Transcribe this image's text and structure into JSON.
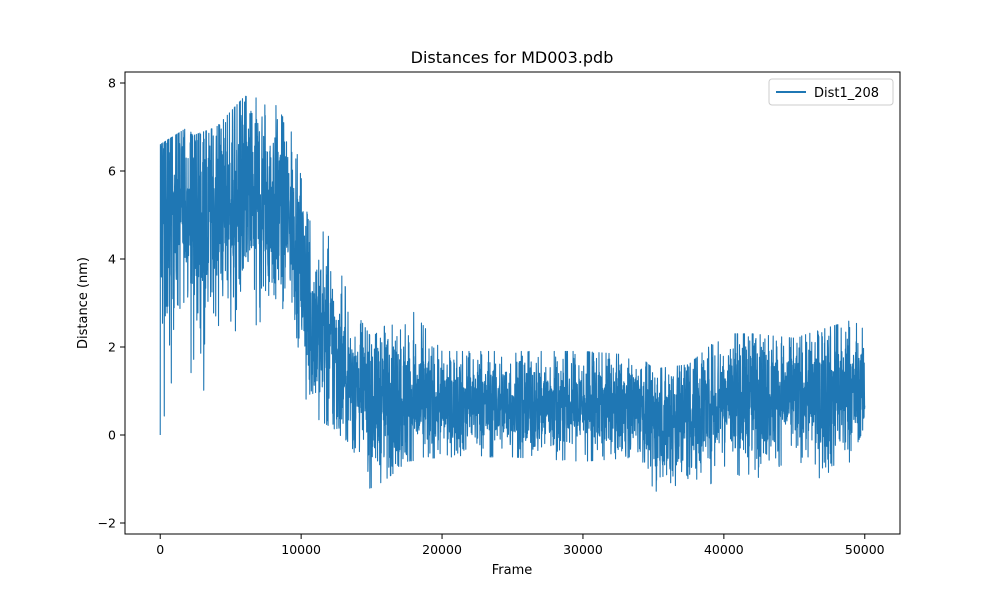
{
  "chart_data": {
    "type": "line",
    "title": "Distances for MD003.pdb",
    "xlabel": "Frame",
    "ylabel": "Distance (nm)",
    "xlim": [
      -2500,
      52500
    ],
    "ylim": [
      -2.25,
      8.25
    ],
    "xticks": [
      0,
      10000,
      20000,
      30000,
      40000,
      50000
    ],
    "xtick_labels": [
      "0",
      "10000",
      "20000",
      "30000",
      "40000",
      "50000"
    ],
    "yticks": [
      -2,
      0,
      2,
      4,
      6,
      8
    ],
    "ytick_labels": [
      "−2",
      "0",
      "2",
      "4",
      "6",
      "8"
    ],
    "grid": false,
    "legend_position": "top-right",
    "series": [
      {
        "name": "Dist1_208",
        "color": "#1f77b4",
        "n_frames": 50000,
        "envelope": [
          {
            "x": 0,
            "low": 0.0,
            "high": 6.6,
            "mean": 5.0
          },
          {
            "x": 2000,
            "low": 3.0,
            "high": 7.0,
            "mean": 5.3
          },
          {
            "x": 2300,
            "low": -0.3,
            "high": 6.8,
            "mean": 5.0
          },
          {
            "x": 4000,
            "low": 2.5,
            "high": 7.0,
            "mean": 5.2
          },
          {
            "x": 6000,
            "low": 2.3,
            "high": 7.7,
            "mean": 5.4
          },
          {
            "x": 8000,
            "low": 2.8,
            "high": 7.6,
            "mean": 5.2
          },
          {
            "x": 9500,
            "low": 2.6,
            "high": 6.8,
            "mean": 4.8
          },
          {
            "x": 10500,
            "low": 0.5,
            "high": 4.9,
            "mean": 2.8
          },
          {
            "x": 12000,
            "low": 0.2,
            "high": 4.5,
            "mean": 2.0
          },
          {
            "x": 13500,
            "low": -0.2,
            "high": 3.0,
            "mean": 1.2
          },
          {
            "x": 15000,
            "low": -1.3,
            "high": 2.2,
            "mean": 0.8
          },
          {
            "x": 17500,
            "low": -0.6,
            "high": 3.0,
            "mean": 0.8
          },
          {
            "x": 20000,
            "low": -0.5,
            "high": 1.9,
            "mean": 0.7
          },
          {
            "x": 25000,
            "low": -0.5,
            "high": 1.9,
            "mean": 0.7
          },
          {
            "x": 30000,
            "low": -0.6,
            "high": 1.9,
            "mean": 0.7
          },
          {
            "x": 34000,
            "low": -0.5,
            "high": 1.8,
            "mean": 0.7
          },
          {
            "x": 35000,
            "low": -1.5,
            "high": 1.5,
            "mean": 0.3
          },
          {
            "x": 37500,
            "low": -1.8,
            "high": 1.6,
            "mean": 0.5
          },
          {
            "x": 40000,
            "low": -0.7,
            "high": 2.3,
            "mean": 0.9
          },
          {
            "x": 42000,
            "low": -1.1,
            "high": 2.3,
            "mean": 0.9
          },
          {
            "x": 45000,
            "low": -0.5,
            "high": 2.2,
            "mean": 0.9
          },
          {
            "x": 48000,
            "low": -1.3,
            "high": 2.5,
            "mean": 0.9
          },
          {
            "x": 50000,
            "low": 0.2,
            "high": 2.7,
            "mean": 1.0
          }
        ]
      }
    ]
  }
}
